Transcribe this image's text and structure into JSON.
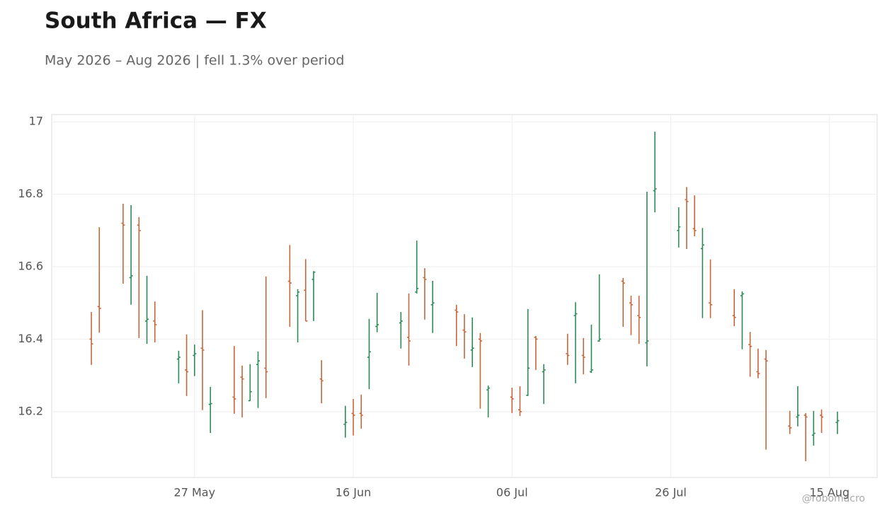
{
  "chart_data": {
    "type": "ohlc",
    "title": "South Africa — FX",
    "subtitle": "May 2026 – Aug 2026 | fell 1.3% over period",
    "watermark": "@robomacro",
    "x": [
      "2026-05-14",
      "2026-05-15",
      "2026-05-18",
      "2026-05-19",
      "2026-05-20",
      "2026-05-21",
      "2026-05-22",
      "2026-05-25",
      "2026-05-26",
      "2026-05-27",
      "2026-05-28",
      "2026-05-29",
      "2026-06-01",
      "2026-06-02",
      "2026-06-03",
      "2026-06-04",
      "2026-06-05",
      "2026-06-08",
      "2026-06-09",
      "2026-06-10",
      "2026-06-11",
      "2026-06-12",
      "2026-06-15",
      "2026-06-16",
      "2026-06-17",
      "2026-06-18",
      "2026-06-19",
      "2026-06-22",
      "2026-06-23",
      "2026-06-24",
      "2026-06-25",
      "2026-06-26",
      "2026-06-29",
      "2026-06-30",
      "2026-07-01",
      "2026-07-02",
      "2026-07-03",
      "2026-07-06",
      "2026-07-07",
      "2026-07-08",
      "2026-07-09",
      "2026-07-10",
      "2026-07-13",
      "2026-07-14",
      "2026-07-15",
      "2026-07-16",
      "2026-07-17",
      "2026-07-20",
      "2026-07-21",
      "2026-07-22",
      "2026-07-23",
      "2026-07-24",
      "2026-07-27",
      "2026-07-28",
      "2026-07-29",
      "2026-07-30",
      "2026-07-31",
      "2026-08-03",
      "2026-08-04",
      "2026-08-05",
      "2026-08-06",
      "2026-08-07",
      "2026-08-10",
      "2026-08-11",
      "2026-08-12",
      "2026-08-13",
      "2026-08-14",
      "2026-08-16"
    ],
    "open": [
      16.4,
      16.49,
      16.72,
      16.57,
      16.715,
      16.45,
      16.45,
      16.345,
      16.315,
      16.355,
      16.375,
      16.22,
      16.24,
      16.295,
      16.23,
      16.33,
      16.32,
      16.56,
      16.52,
      16.535,
      16.565,
      16.29,
      16.165,
      16.195,
      16.195,
      16.35,
      16.435,
      16.445,
      16.405,
      16.53,
      16.57,
      16.495,
      16.48,
      16.425,
      16.37,
      16.4,
      16.26,
      16.24,
      16.205,
      16.245,
      16.405,
      16.31,
      16.36,
      16.465,
      16.355,
      16.31,
      16.395,
      16.56,
      16.5,
      16.465,
      16.39,
      16.81,
      16.7,
      16.785,
      16.705,
      16.65,
      16.5,
      16.465,
      16.52,
      16.385,
      16.31,
      16.345,
      16.16,
      16.185,
      16.19,
      16.135,
      16.19,
      16.17
    ],
    "high": [
      16.475,
      16.709,
      16.774,
      16.77,
      16.737,
      16.575,
      16.504,
      16.368,
      16.413,
      16.385,
      16.48,
      16.268,
      16.381,
      16.327,
      16.331,
      16.366,
      16.573,
      16.66,
      16.538,
      16.621,
      16.588,
      16.342,
      16.216,
      16.235,
      16.247,
      16.456,
      16.528,
      16.475,
      16.526,
      16.672,
      16.596,
      16.561,
      16.495,
      16.469,
      16.46,
      16.417,
      16.272,
      16.266,
      16.27,
      16.483,
      16.409,
      16.331,
      16.415,
      16.502,
      16.403,
      16.44,
      16.579,
      16.569,
      16.52,
      16.52,
      16.807,
      16.973,
      16.764,
      16.82,
      16.797,
      16.707,
      16.62,
      16.538,
      16.532,
      16.42,
      16.374,
      16.37,
      16.202,
      16.27,
      16.196,
      16.202,
      16.206,
      16.2
    ],
    "low": [
      16.329,
      16.418,
      16.553,
      16.495,
      16.403,
      16.387,
      16.391,
      16.278,
      16.243,
      16.298,
      16.204,
      16.141,
      16.194,
      16.184,
      16.229,
      16.21,
      16.237,
      16.434,
      16.391,
      16.45,
      16.45,
      16.223,
      16.128,
      16.134,
      16.153,
      16.262,
      16.419,
      16.374,
      16.327,
      16.526,
      16.454,
      16.417,
      16.381,
      16.346,
      16.323,
      16.208,
      16.184,
      16.196,
      16.188,
      16.243,
      16.315,
      16.221,
      16.329,
      16.278,
      16.303,
      16.307,
      16.393,
      16.434,
      16.411,
      16.387,
      16.325,
      16.75,
      16.653,
      16.649,
      16.684,
      16.458,
      16.458,
      16.436,
      16.372,
      16.296,
      16.292,
      16.095,
      16.138,
      16.159,
      16.063,
      16.106,
      16.141,
      16.138
    ],
    "close": [
      16.387,
      16.485,
      16.715,
      16.575,
      16.7,
      16.455,
      16.44,
      16.35,
      16.31,
      16.36,
      16.37,
      16.222,
      16.235,
      16.29,
      16.255,
      16.34,
      16.31,
      16.555,
      16.53,
      16.45,
      16.585,
      16.285,
      16.17,
      16.19,
      16.19,
      16.365,
      16.44,
      16.45,
      16.395,
      16.54,
      16.565,
      16.5,
      16.475,
      16.42,
      16.375,
      16.395,
      16.265,
      16.235,
      16.2,
      16.32,
      16.4,
      16.315,
      16.355,
      16.47,
      16.35,
      16.315,
      16.4,
      16.555,
      16.495,
      16.46,
      16.395,
      16.815,
      16.71,
      16.78,
      16.7,
      16.66,
      16.495,
      16.46,
      16.525,
      16.38,
      16.305,
      16.34,
      16.155,
      16.19,
      16.185,
      16.14,
      16.185,
      16.175
    ],
    "up_color": "#2e8b57",
    "down_color": "#c8663a",
    "xlim": [
      "2026-05-09",
      "2026-08-21"
    ],
    "xticks": [
      {
        "value": "2026-05-27",
        "label": "27 May"
      },
      {
        "value": "2026-06-16",
        "label": "16 Jun"
      },
      {
        "value": "2026-07-06",
        "label": "06 Jul"
      },
      {
        "value": "2026-07-26",
        "label": "26 Jul"
      },
      {
        "value": "2026-08-15",
        "label": "15 Aug"
      }
    ],
    "ylim": [
      16.018,
      17.02
    ],
    "yticks": [
      16.2,
      16.4,
      16.6,
      16.8,
      17
    ],
    "grid": true
  }
}
